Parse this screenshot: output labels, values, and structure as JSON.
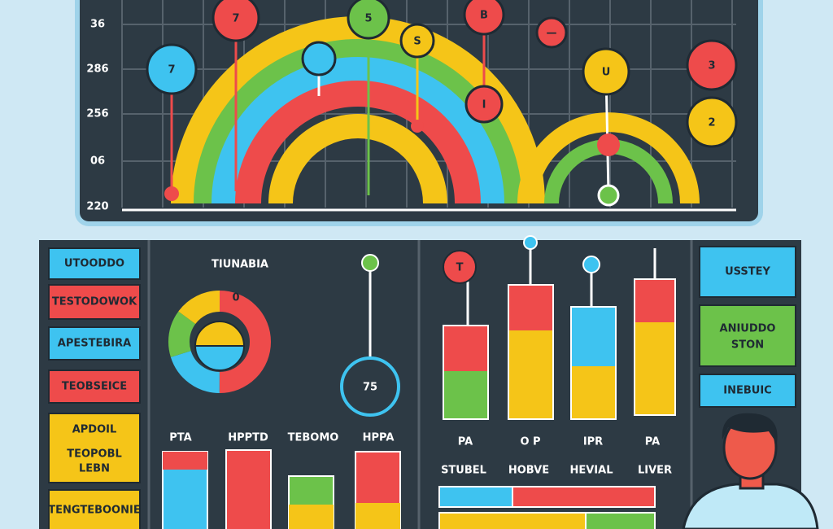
{
  "top_chart": {
    "y_labels": [
      "36",
      "286",
      "256",
      "06",
      "220"
    ],
    "bubbles": [
      "7",
      "7",
      "5",
      "S",
      "B",
      "I",
      "—",
      "U",
      "3",
      "2"
    ]
  },
  "left_menu": {
    "items": [
      "UTOODDO",
      "TESTODOWOK",
      "APESTEBIRA",
      "TEOBSEICE",
      [
        "APDOIL",
        "TEOPOBL",
        "LEBN"
      ],
      "TENGTEBOONIE"
    ]
  },
  "middle_panel": {
    "title": "TIUNABIA",
    "donut_label": "0",
    "gauge_value": "75",
    "bar_labels": [
      "PTA",
      "HPPTD",
      "TEBOMO",
      "HPPA"
    ]
  },
  "right_panel": {
    "marker": "T",
    "bar_labels": [
      "PA",
      "O P",
      "IPR",
      "PA"
    ],
    "row_labels": [
      "STUBEL",
      "HOBVE",
      "HEVIAL",
      "LIVER"
    ]
  },
  "side_menu": {
    "items": [
      "USSTEY",
      [
        "ANIUDDO",
        "STON"
      ],
      "INEBUIC"
    ]
  }
}
